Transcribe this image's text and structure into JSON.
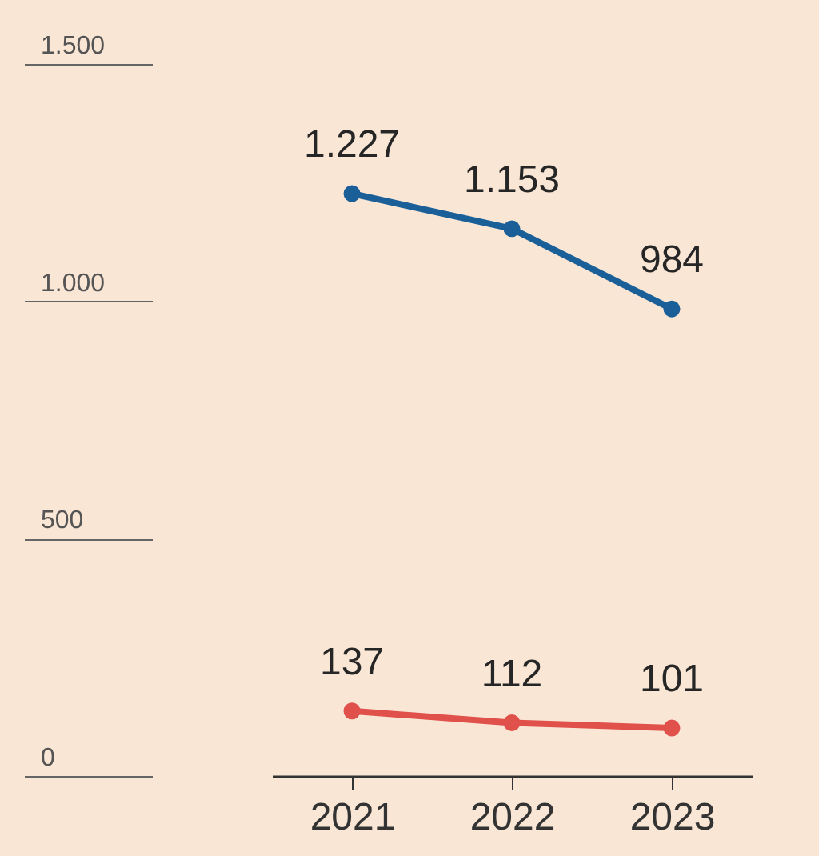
{
  "chart_data": {
    "type": "line",
    "categories": [
      "2021",
      "2022",
      "2023"
    ],
    "series": [
      {
        "color": "#1b5f98",
        "values": [
          1227,
          1153,
          984
        ],
        "value_labels": [
          "1.227",
          "1.153",
          "984"
        ]
      },
      {
        "color": "#e0514b",
        "values": [
          137,
          112,
          101
        ],
        "value_labels": [
          "137",
          "112",
          "101"
        ]
      }
    ],
    "ylim": [
      0,
      1500
    ],
    "yticks": [
      0,
      500,
      {
        "value": 1000,
        "label": "1.000"
      },
      {
        "value": 1500,
        "label": "1.500"
      }
    ],
    "marker": "circle"
  }
}
